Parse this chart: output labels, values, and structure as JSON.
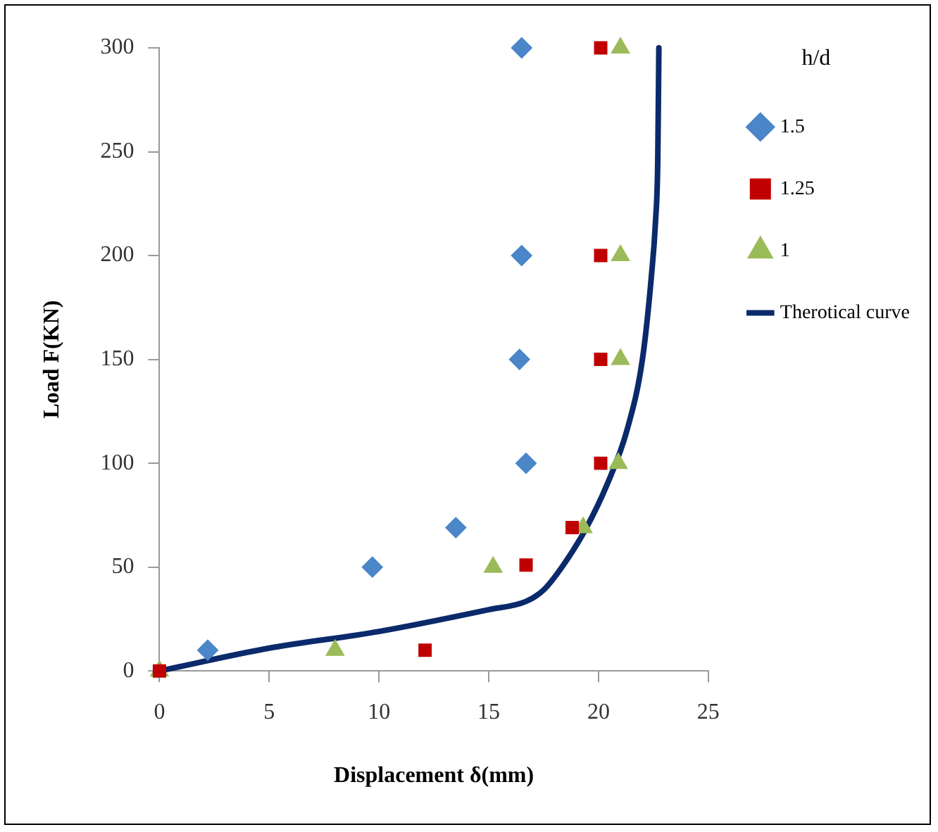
{
  "chart_data": {
    "type": "scatter",
    "xlabel": "Displacement δ(mm)",
    "ylabel": "Load F(KN)",
    "legend_title": "h/d",
    "legend": "right",
    "grid": false,
    "xlim": [
      0,
      25
    ],
    "xticks": [
      0,
      5,
      10,
      15,
      20,
      25
    ],
    "ylim": [
      0,
      300
    ],
    "yticks": [
      0,
      50,
      100,
      150,
      200,
      250,
      300
    ],
    "series": [
      {
        "name": "Therotical curve",
        "type": "line",
        "color": "#0b2a6b",
        "marker": "none",
        "line_style": "solid",
        "x": [
          0,
          5,
          10,
          15,
          16.7,
          17.5,
          18.4,
          19.4,
          20.4,
          21.3,
          22,
          22.4,
          22.6,
          22.7,
          22.75
        ],
        "values": [
          0,
          11,
          19,
          29.5,
          33.5,
          39,
          51,
          68,
          90,
          116,
          150,
          189,
          217,
          246,
          300
        ]
      },
      {
        "name": "1.5",
        "color": "#4a86c8",
        "marker": "diamond",
        "x": [
          2.2,
          9.7,
          13.5,
          16.7,
          16.4,
          16.5,
          16.5
        ],
        "values": [
          10,
          50,
          69,
          100,
          150,
          200,
          300
        ]
      },
      {
        "name": "1.25",
        "color": "#c00000",
        "marker": "square",
        "x": [
          0,
          12.1,
          16.7,
          18.8,
          20.1,
          20.1,
          20.1,
          20.1
        ],
        "values": [
          0,
          10,
          51,
          69,
          100,
          150,
          200,
          300
        ]
      },
      {
        "name": "1",
        "color": "#9bbb59",
        "marker": "triangle",
        "x": [
          0,
          8,
          15.2,
          19.3,
          20.9,
          21,
          21,
          21
        ],
        "values": [
          0,
          10,
          50,
          69,
          100,
          150,
          200,
          300
        ]
      }
    ]
  }
}
